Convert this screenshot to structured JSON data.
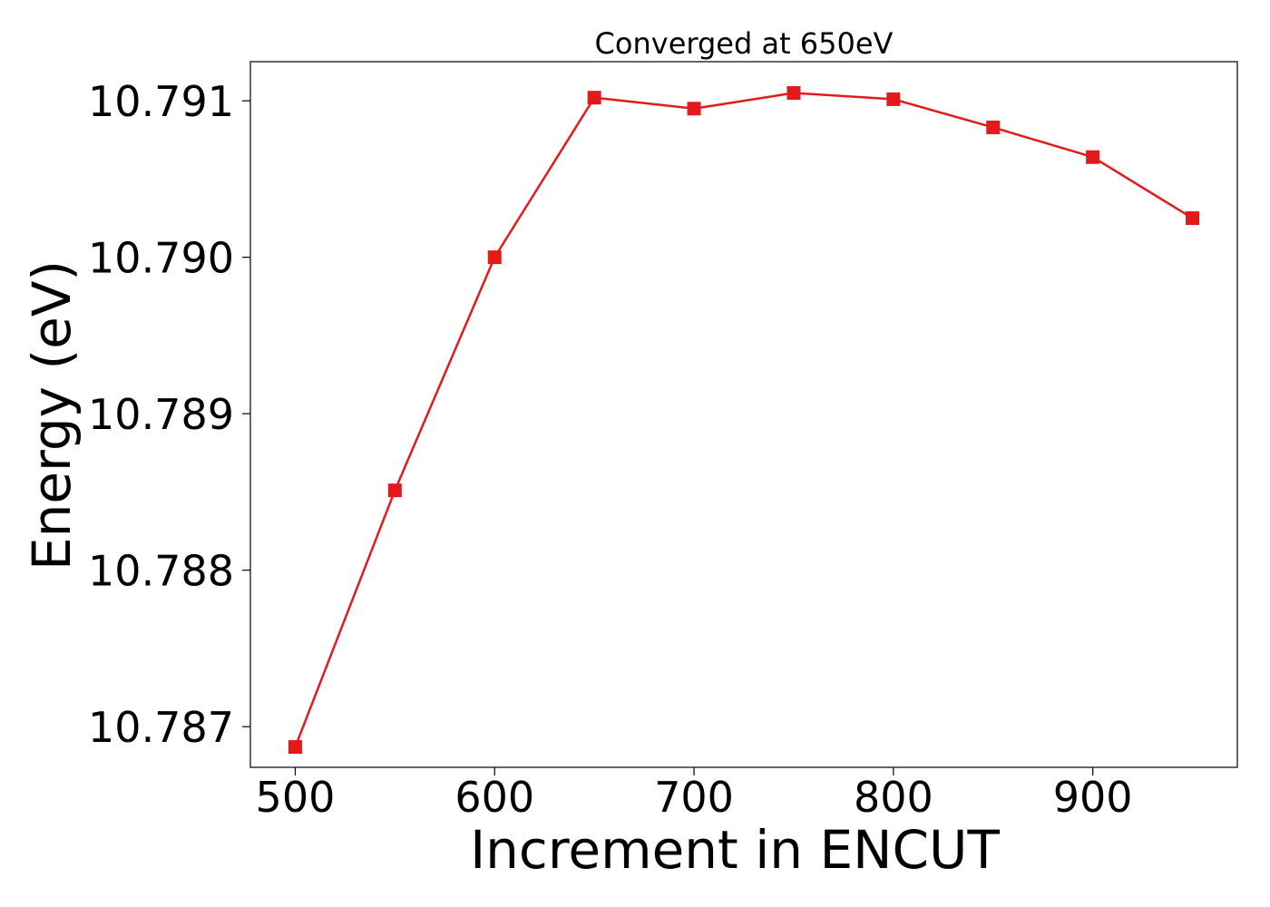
{
  "chart_data": {
    "type": "line",
    "title": "Converged at 650eV",
    "xlabel": "Increment in ENCUT",
    "ylabel": "Energy (eV)",
    "xlim": [
      477.5,
      972.5
    ],
    "ylim": [
      10.78674,
      10.79125
    ],
    "x_ticks": [
      500,
      600,
      700,
      800,
      900
    ],
    "x_tick_labels": [
      "500",
      "600",
      "700",
      "800",
      "900"
    ],
    "y_ticks": [
      10.787,
      10.788,
      10.789,
      10.79,
      10.791
    ],
    "y_tick_labels": [
      "10.787",
      "10.788",
      "10.789",
      "10.790",
      "10.791"
    ],
    "grid": false,
    "series": [
      {
        "marker": "square",
        "color": "#e31a1c",
        "x": [
          500,
          550,
          600,
          650,
          700,
          750,
          800,
          850,
          900,
          950
        ],
        "y": [
          10.78687,
          10.78851,
          10.79,
          10.79102,
          10.79095,
          10.79105,
          10.79101,
          10.79083,
          10.79064,
          10.79025
        ]
      }
    ]
  }
}
